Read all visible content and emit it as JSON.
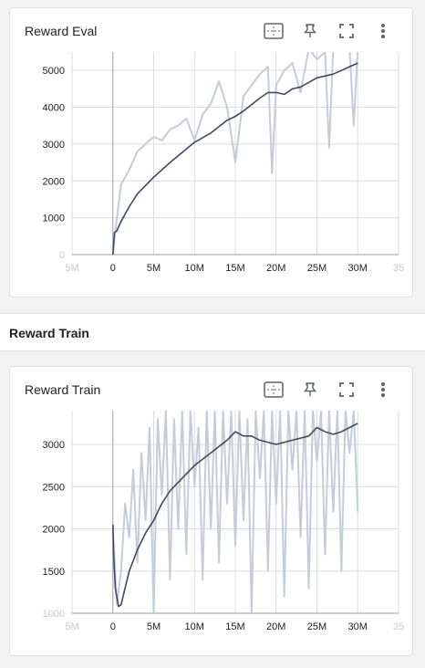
{
  "cards": {
    "eval": {
      "title": "Reward Eval"
    },
    "train": {
      "title": "Reward Train"
    }
  },
  "group": {
    "title": "Reward Train"
  },
  "toolbar_icons": [
    "fit-domain-icon",
    "pin-icon",
    "fullscreen-icon",
    "more-vert-icon"
  ],
  "colors": {
    "smoothed": "#3f4a5e",
    "raw": "#c5ccd8",
    "grid": "#dcdcdc",
    "axis": "#9e9e9e"
  },
  "chart_data": [
    {
      "type": "line",
      "title": "Reward Eval",
      "x_ticks": [
        "5M",
        "0",
        "5M",
        "10M",
        "15M",
        "20M",
        "25M",
        "30M",
        "35"
      ],
      "y_ticks": [
        "0",
        "1000",
        "2000",
        "3000",
        "4000",
        "5000"
      ],
      "xlim": [
        -5000000,
        35000000
      ],
      "ylim": [
        0,
        5500
      ],
      "grid": true,
      "series": [
        {
          "role": "smoothed",
          "x": [
            0,
            200000,
            500000,
            1000000,
            2000000,
            3000000,
            5000000,
            7000000,
            10000000,
            12000000,
            14000000,
            15000000,
            16000000,
            18000000,
            19000000,
            20000000,
            21000000,
            22000000,
            23000000,
            25000000,
            27000000,
            28000000,
            29000000,
            30000000
          ],
          "y": [
            0,
            600,
            650,
            900,
            1300,
            1650,
            2100,
            2500,
            3050,
            3300,
            3650,
            3750,
            3900,
            4250,
            4400,
            4400,
            4350,
            4500,
            4550,
            4800,
            4900,
            5000,
            5100,
            5200
          ]
        },
        {
          "role": "raw",
          "x": [
            0,
            500000,
            1000000,
            2000000,
            3000000,
            4000000,
            5000000,
            6000000,
            7000000,
            8000000,
            9000000,
            10000000,
            11000000,
            12000000,
            13000000,
            14000000,
            15000000,
            16000000,
            17000000,
            18000000,
            19000000,
            19500000,
            20000000,
            21000000,
            22000000,
            23000000,
            24000000,
            25000000,
            26000000,
            26500000,
            27000000,
            28000000,
            29000000,
            29500000,
            30000000
          ],
          "y": [
            0,
            1000,
            1900,
            2300,
            2800,
            3000,
            3200,
            3100,
            3400,
            3500,
            3700,
            3100,
            3800,
            4100,
            4700,
            4000,
            2500,
            4300,
            4600,
            4900,
            5100,
            2200,
            4600,
            5000,
            5200,
            4400,
            5600,
            5300,
            5500,
            2900,
            5600,
            5600,
            5600,
            3500,
            5600
          ]
        }
      ]
    },
    {
      "type": "line",
      "title": "Reward Train",
      "x_ticks": [
        "5M",
        "0",
        "5M",
        "10M",
        "15M",
        "20M",
        "25M",
        "30M",
        "35"
      ],
      "y_ticks": [
        "1000",
        "1500",
        "2000",
        "2500",
        "3000"
      ],
      "xlim": [
        -5000000,
        35000000
      ],
      "ylim": [
        1000,
        3400
      ],
      "grid": true,
      "series": [
        {
          "role": "smoothed",
          "x": [
            0,
            100000,
            300000,
            700000,
            1000000,
            1500000,
            2000000,
            3000000,
            4000000,
            5000000,
            6000000,
            7000000,
            8000000,
            10000000,
            12000000,
            14000000,
            15000000,
            16000000,
            17000000,
            18000000,
            20000000,
            22000000,
            24000000,
            25000000,
            26000000,
            27000000,
            28000000,
            30000000
          ],
          "y": [
            2050,
            1700,
            1300,
            1080,
            1100,
            1300,
            1500,
            1750,
            1950,
            2100,
            2300,
            2450,
            2550,
            2750,
            2900,
            3050,
            3150,
            3100,
            3100,
            3050,
            3000,
            3050,
            3100,
            3200,
            3150,
            3120,
            3150,
            3250
          ]
        },
        {
          "role": "raw",
          "x": [
            0,
            500000,
            1000000,
            1500000,
            2000000,
            2500000,
            3000000,
            3500000,
            4000000,
            4500000,
            5000000,
            5500000,
            6000000,
            6500000,
            7000000,
            7500000,
            8000000,
            8500000,
            9000000,
            9500000,
            10000000,
            10500000,
            11000000,
            11500000,
            12000000,
            12500000,
            13000000,
            13500000,
            14000000,
            14500000,
            15000000,
            15500000,
            16000000,
            16500000,
            17000000,
            17500000,
            18000000,
            18500000,
            19000000,
            19500000,
            20000000,
            20500000,
            21000000,
            21500000,
            22000000,
            22500000,
            23000000,
            23500000,
            24000000,
            24500000,
            25000000,
            25500000,
            26000000,
            26500000,
            27000000,
            27500000,
            28000000,
            28500000,
            29000000,
            29500000,
            30000000
          ],
          "y": [
            2000,
            1100,
            1500,
            2300,
            1900,
            2700,
            1600,
            2900,
            2100,
            3200,
            1000,
            3300,
            2400,
            3400,
            1400,
            3300,
            2000,
            3400,
            1700,
            3400,
            2500,
            3200,
            1400,
            3400,
            2000,
            3400,
            1600,
            3400,
            2300,
            3400,
            1800,
            3400,
            2100,
            3300,
            1000,
            3400,
            2600,
            3400,
            1500,
            3400,
            2300,
            3400,
            1200,
            3400,
            2700,
            3400,
            1900,
            3400,
            1300,
            3400,
            2800,
            3400,
            1700,
            3400,
            2200,
            3400,
            1500,
            3400,
            2900,
            3400,
            2200
          ]
        }
      ]
    }
  ]
}
